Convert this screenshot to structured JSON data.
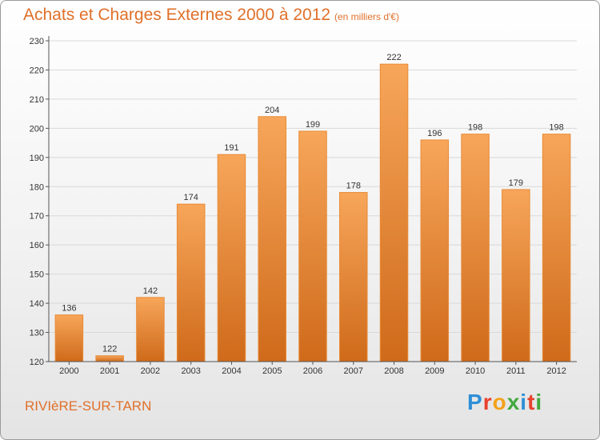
{
  "header": {
    "title": "Achats et Charges Externes 2000 à 2012",
    "unit_note": "(en milliers d'€)"
  },
  "footer": {
    "commune": "RIVIèRE-SUR-TARN",
    "brand_letters": [
      "P",
      "r",
      "o",
      "x",
      "i",
      "t",
      "i"
    ],
    "brand_colors": [
      "#2e8fd6",
      "#e8412c",
      "#f4a21b",
      "#43a83f",
      "#2e8fd6",
      "#e8412c",
      "#43a83f"
    ]
  },
  "colors": {
    "bar_top": "#f7a65a",
    "bar_bottom": "#cf6a1a",
    "bar_edge": "#e98b36",
    "grid": "#d9d9d9",
    "axis": "#555555",
    "accent": "#e0702a"
  },
  "chart_data": {
    "type": "bar",
    "title": "Achats et Charges Externes 2000 à 2012",
    "subtitle": "(en milliers d'€)",
    "xlabel": "",
    "ylabel": "",
    "categories": [
      "2000",
      "2001",
      "2002",
      "2003",
      "2004",
      "2005",
      "2006",
      "2007",
      "2008",
      "2009",
      "2010",
      "2011",
      "2012"
    ],
    "values": [
      136,
      122,
      142,
      174,
      191,
      204,
      199,
      178,
      222,
      196,
      198,
      179,
      198
    ],
    "value_labels": [
      "136",
      "122",
      "142",
      "174",
      "191",
      "204",
      "199",
      "178",
      "222",
      "196",
      "198",
      "179",
      "198"
    ],
    "ylim": [
      120,
      230
    ],
    "yticks": [
      120,
      130,
      140,
      150,
      160,
      170,
      180,
      190,
      200,
      210,
      220,
      230
    ],
    "ytick_labels": [
      "120",
      "130",
      "140",
      "150",
      "160",
      "170",
      "180",
      "190",
      "200",
      "210",
      "220",
      "230"
    ],
    "grid": true,
    "legend": "none"
  }
}
